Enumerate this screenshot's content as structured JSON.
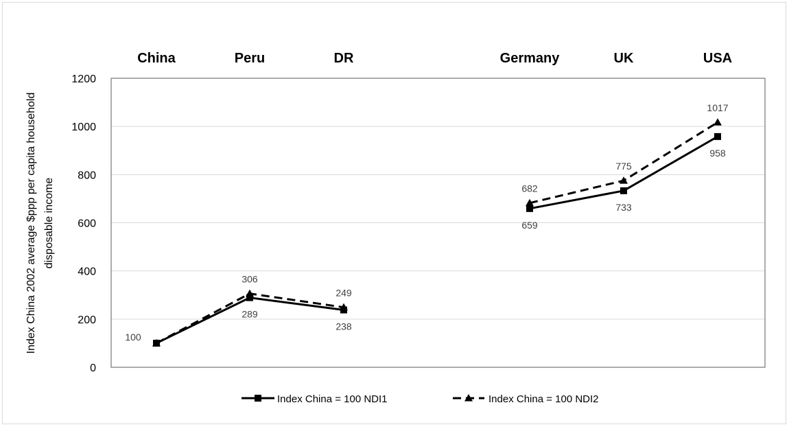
{
  "chart_data": {
    "type": "line",
    "title": "",
    "xlabel": "",
    "ylabel": [
      "Index China 2002 average $ppp per capita household",
      "disposable income"
    ],
    "ylim": [
      0,
      1200
    ],
    "yticks": [
      0,
      200,
      400,
      600,
      800,
      1000,
      1200
    ],
    "grid": true,
    "legend_position": "bottom",
    "categories": [
      "China",
      "Peru",
      "DR",
      "Germany",
      "UK",
      "USA"
    ],
    "segments": [
      [
        0,
        1,
        2
      ],
      [
        3,
        4,
        5
      ]
    ],
    "series": [
      {
        "name": "Index China = 100 NDI1",
        "style": "solid",
        "marker": "square",
        "color": "#000000",
        "values": [
          100,
          289,
          238,
          659,
          733,
          958
        ],
        "labels": [
          "100",
          "289",
          "238",
          "659",
          "733",
          "958"
        ]
      },
      {
        "name": "Index China = 100 NDI2",
        "style": "dashed",
        "marker": "triangle",
        "color": "#000000",
        "values": [
          100,
          306,
          249,
          682,
          775,
          1017
        ],
        "labels": [
          "",
          "306",
          "249",
          "682",
          "775",
          "1017"
        ]
      }
    ]
  }
}
